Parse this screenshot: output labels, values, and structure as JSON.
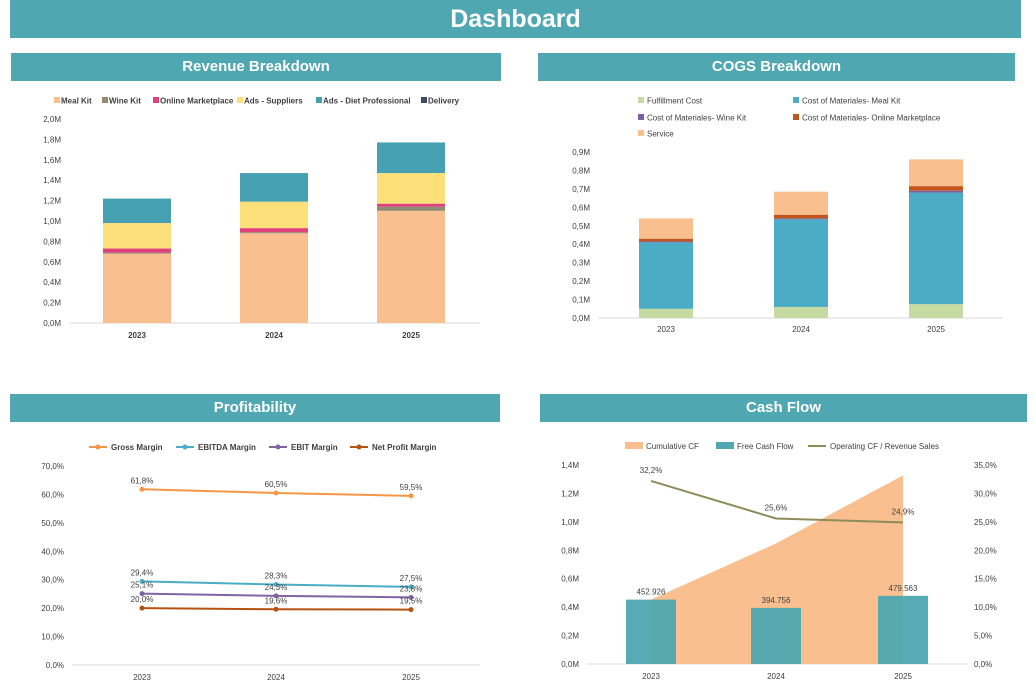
{
  "header": {
    "title": "Dashboard"
  },
  "colors": {
    "banner": "#4ea7b1",
    "meal_kit": "#f9bf8f",
    "wine_kit": "#8e8d72",
    "online_marketplace": "#e0407b",
    "ads_suppliers": "#fde07a",
    "ads_diet": "#45a1b1",
    "delivery": "#3f4c63",
    "fulfillment": "#c6dba1",
    "cogs_meal": "#4bacc6",
    "cogs_wine": "#7a62a2",
    "cogs_online": "#c0561b",
    "service": "#f9bf8f",
    "gross": "#f79646",
    "ebitda": "#4bacc6",
    "ebit": "#8064a2",
    "net": "#b55312",
    "cum_cf": "#f9bf8f",
    "fcf": "#4ea7b1",
    "opcf": "#8e8c5a"
  },
  "chart_data": [
    {
      "id": "revenue",
      "type": "bar",
      "stacked": true,
      "title": "Revenue Breakdown",
      "categories": [
        "2023",
        "2024",
        "2025"
      ],
      "series": [
        {
          "name": "Meal Kit",
          "values": [
            0.68,
            0.88,
            1.1
          ]
        },
        {
          "name": "Wine Kit",
          "values": [
            0.01,
            0.01,
            0.04
          ]
        },
        {
          "name": "Online Marketplace",
          "values": [
            0.04,
            0.04,
            0.03
          ]
        },
        {
          "name": "Ads - Suppliers",
          "values": [
            0.25,
            0.26,
            0.3
          ]
        },
        {
          "name": "Ads -  Diet Professional",
          "values": [
            0.24,
            0.28,
            0.3
          ]
        },
        {
          "name": "Delivery",
          "values": [
            0,
            0,
            0
          ]
        }
      ],
      "ylim": [
        0,
        2.0
      ],
      "yticks": [
        "0,0M",
        "0,2M",
        "0,4M",
        "0,6M",
        "0,8M",
        "1,0M",
        "1,2M",
        "1,4M",
        "1,6M",
        "1,8M",
        "2,0M"
      ],
      "legend": "top"
    },
    {
      "id": "cogs",
      "type": "bar",
      "stacked": true,
      "title": "COGS Breakdown",
      "categories": [
        "2023",
        "2024",
        "2025"
      ],
      "series": [
        {
          "name": "Fulfillment Cost",
          "values": [
            0.05,
            0.06,
            0.075
          ]
        },
        {
          "name": "Cost of Materiales- Meal Kit",
          "values": [
            0.36,
            0.475,
            0.605
          ]
        },
        {
          "name": "Cost of Materiales- Wine Kit",
          "values": [
            0.005,
            0.005,
            0.01
          ]
        },
        {
          "name": "Cost of Materiales- Online Marketplace",
          "values": [
            0.015,
            0.02,
            0.025
          ]
        },
        {
          "name": "Service",
          "values": [
            0.11,
            0.125,
            0.145
          ]
        }
      ],
      "ylim": [
        0,
        0.9
      ],
      "yticks": [
        "0,0M",
        "0,1M",
        "0,2M",
        "0,3M",
        "0,4M",
        "0,5M",
        "0,6M",
        "0,7M",
        "0,8M",
        "0,9M"
      ],
      "legend": "top"
    },
    {
      "id": "profitability",
      "type": "line",
      "title": "Profitability",
      "categories": [
        "2023",
        "2024",
        "2025"
      ],
      "series": [
        {
          "name": "Gross Margin",
          "values": [
            61.8,
            60.5,
            59.5
          ],
          "labels": [
            "61,8%",
            "60,5%",
            "59,5%"
          ]
        },
        {
          "name": "EBITDA Margin",
          "values": [
            29.4,
            28.3,
            27.5
          ],
          "labels": [
            "29,4%",
            "28,3%",
            "27,5%"
          ]
        },
        {
          "name": "EBIT Margin",
          "values": [
            25.1,
            24.3,
            23.8
          ],
          "labels": [
            "25,1%",
            "24,3%",
            "23,8%"
          ]
        },
        {
          "name": "Net Profit Margin",
          "values": [
            20.0,
            19.6,
            19.5
          ],
          "labels": [
            "20,0%",
            "19,6%",
            "19,5%"
          ]
        }
      ],
      "ylim": [
        0,
        70
      ],
      "yticks": [
        "0,0%",
        "10,0%",
        "20,0%",
        "30,0%",
        "40,0%",
        "50,0%",
        "60,0%",
        "70,0%"
      ],
      "legend": "top"
    },
    {
      "id": "cashflow",
      "type": "bar",
      "title": "Cash Flow",
      "categories": [
        "2023",
        "2024",
        "2025"
      ],
      "series": [
        {
          "name": "Cumulative CF",
          "kind": "area",
          "values": [
            0.453,
            0.848,
            1.327
          ]
        },
        {
          "name": "Free Cash Flow",
          "kind": "bar",
          "values": [
            0.452926,
            0.394756,
            0.479563
          ],
          "labels": [
            "452.926",
            "394.756",
            "479.563"
          ]
        },
        {
          "name": "Operating CF / Revenue Sales",
          "kind": "line",
          "axis": "right",
          "values": [
            32.2,
            25.6,
            24.9
          ],
          "labels": [
            "32,2%",
            "25,6%",
            "24,9%"
          ]
        }
      ],
      "ylim": [
        0,
        1.4
      ],
      "yticks": [
        "0,0M",
        "0,2M",
        "0,4M",
        "0,6M",
        "0,8M",
        "1,0M",
        "1,2M",
        "1,4M"
      ],
      "y2lim": [
        0,
        35
      ],
      "y2ticks": [
        "0,0%",
        "5,0%",
        "10,0%",
        "15,0%",
        "20,0%",
        "25,0%",
        "30,0%",
        "35,0%"
      ],
      "legend": "top"
    }
  ]
}
